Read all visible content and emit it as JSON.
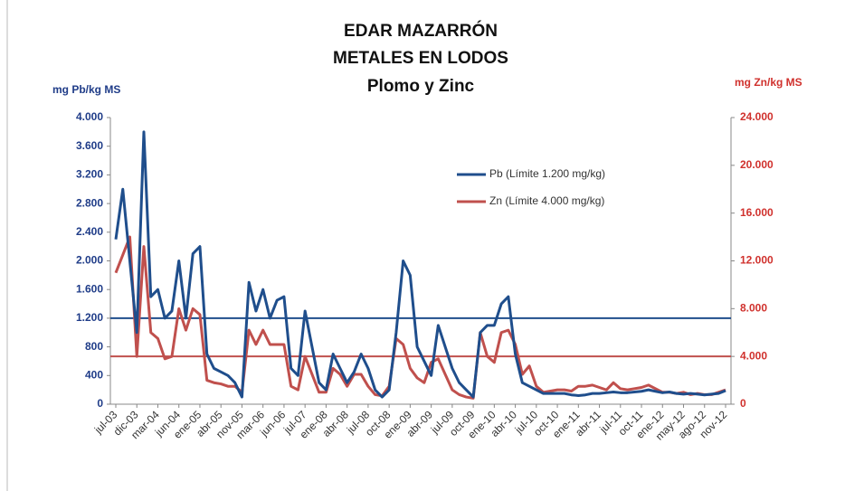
{
  "chart_data": {
    "type": "line",
    "title": [
      "EDAR MAZARRÓN",
      "METALES EN LODOS",
      "Plomo y Zinc"
    ],
    "y_label": "mg Pb/kg MS",
    "y2_label": "mg Zn/kg MS",
    "categories": [
      "jul-03",
      null,
      null,
      "dic-03",
      null,
      null,
      "mar-04",
      null,
      null,
      "jun-04",
      null,
      null,
      "ene-05",
      null,
      null,
      "abr-05",
      null,
      null,
      "nov-05",
      null,
      null,
      "mar-06",
      null,
      null,
      "jun-06",
      null,
      null,
      "jul-07",
      null,
      null,
      "ene-08",
      null,
      null,
      "abr-08",
      null,
      null,
      "jul-08",
      null,
      null,
      "oct-08",
      null,
      null,
      "ene-09",
      null,
      null,
      "abr-09",
      null,
      null,
      "jul-09",
      null,
      null,
      "oct-09",
      null,
      null,
      "ene-10",
      null,
      null,
      "abr-10",
      null,
      null,
      "jul-10",
      null,
      null,
      "oct-10",
      null,
      null,
      "ene-11",
      null,
      null,
      "abr-11",
      null,
      null,
      "jul-11",
      null,
      null,
      "oct-11",
      null,
      null,
      "ene-12",
      null,
      null,
      "may-12",
      null,
      null,
      "ago-12",
      null,
      null,
      "nov-12"
    ],
    "series": [
      {
        "name": "Zn (Límite 4.000 mg/kg)",
        "color": "#c0504d",
        "axis": "y2",
        "values": [
          11000,
          12500,
          14000,
          4000,
          13200,
          6000,
          5500,
          3800,
          4000,
          8000,
          6200,
          8000,
          7500,
          2000,
          1800,
          1700,
          1500,
          1500,
          1000,
          6200,
          5000,
          6200,
          5000,
          5000,
          5000,
          1500,
          1200,
          4000,
          2500,
          1000,
          1000,
          3000,
          2500,
          1500,
          2500,
          2500,
          1500,
          800,
          700,
          1500,
          5500,
          5000,
          3000,
          2200,
          1800,
          3500,
          3800,
          2500,
          1200,
          800,
          600,
          500,
          6000,
          4000,
          3500,
          6000,
          6200,
          5000,
          2500,
          3200,
          1500,
          1000,
          1100,
          1200,
          1200,
          1100,
          1500,
          1500,
          1600,
          1400,
          1200,
          1800,
          1300,
          1200,
          1300,
          1400,
          1600,
          1300,
          1000,
          1000,
          900,
          1000,
          800,
          900,
          800,
          800,
          1000,
          1200
        ]
      },
      {
        "name": "Pb (Límite 1.200 mg/kg)",
        "color": "#1f4e8c",
        "axis": "y",
        "values": [
          2300,
          3000,
          2000,
          1000,
          3800,
          1500,
          1600,
          1200,
          1300,
          2000,
          1200,
          2100,
          2200,
          700,
          500,
          450,
          400,
          300,
          100,
          1700,
          1300,
          1600,
          1200,
          1450,
          1500,
          500,
          400,
          1300,
          800,
          300,
          200,
          700,
          500,
          300,
          450,
          700,
          500,
          200,
          100,
          200,
          1000,
          2000,
          1800,
          800,
          600,
          400,
          1100,
          800,
          500,
          300,
          200,
          100,
          1000,
          1100,
          1100,
          1400,
          1500,
          700,
          300,
          250,
          200,
          150,
          150,
          150,
          150,
          130,
          120,
          130,
          150,
          150,
          160,
          170,
          160,
          160,
          170,
          180,
          200,
          180,
          160,
          170,
          150,
          140,
          150,
          140,
          130,
          140,
          150,
          190
        ]
      }
    ],
    "reference_lines": [
      {
        "value": 1200,
        "axis": "y",
        "color": "#1f4e8c"
      },
      {
        "value": 4000,
        "axis": "y2",
        "color": "#c0504d"
      }
    ],
    "ylim": [
      0,
      4000
    ],
    "yticks": [
      0,
      400,
      800,
      {
        "value": 1200,
        "label": "1.200"
      },
      {
        "value": 1600,
        "label": "1.600"
      },
      {
        "value": 2000,
        "label": "2.000"
      },
      {
        "value": 2400,
        "label": "2.400"
      },
      {
        "value": 2800,
        "label": "2.800"
      },
      {
        "value": 3200,
        "label": "3.200"
      },
      {
        "value": 3600,
        "label": "3.600"
      },
      {
        "value": 4000,
        "label": "4.000"
      }
    ],
    "y2lim": [
      0,
      24000
    ],
    "y2ticks": [
      0,
      {
        "value": 4000,
        "label": "4.000"
      },
      {
        "value": 8000,
        "label": "8.000"
      },
      {
        "value": 12000,
        "label": "12.000"
      },
      {
        "value": 16000,
        "label": "16.000"
      },
      {
        "value": 20000,
        "label": "20.000"
      },
      {
        "value": 24000,
        "label": "24.000"
      }
    ],
    "legend": "upper right"
  }
}
